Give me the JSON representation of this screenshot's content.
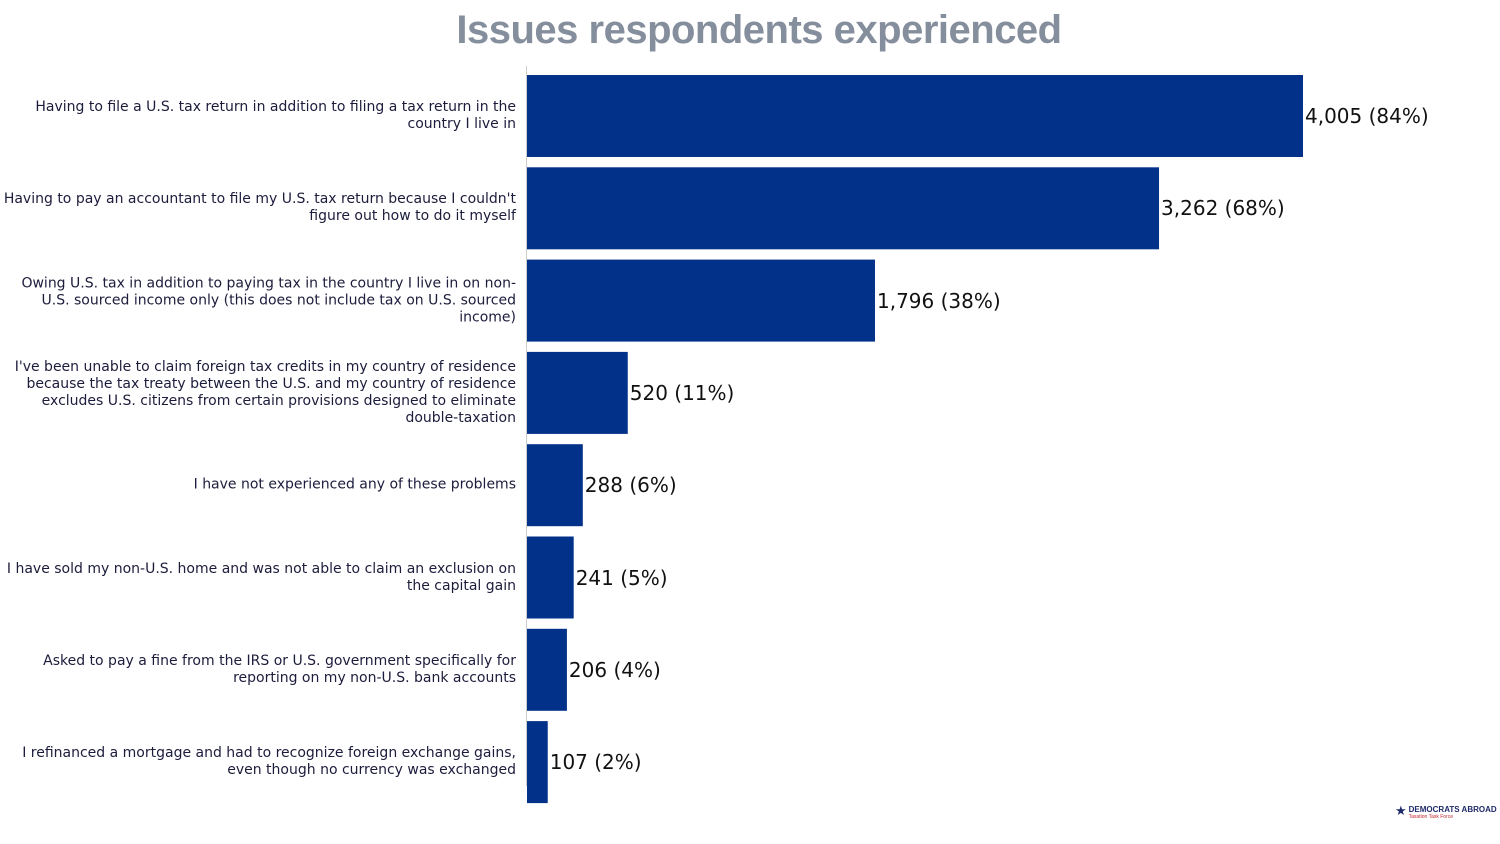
{
  "chart_data": {
    "type": "bar",
    "orientation": "horizontal",
    "title": "Issues respondents experienced",
    "categories": [
      "Having to file a U.S. tax return in addition to filing a tax return in the country I live in",
      "Having to pay an accountant to file my U.S. tax return because I couldn't figure out how to do it myself",
      "Owing U.S. tax in addition to paying tax in the country I live in on non-U.S. sourced income only (this does not include tax on U.S. sourced income)",
      "I've been unable to claim foreign tax credits in my country of residence because the tax treaty between the U.S. and my country of residence excludes U.S. citizens from certain provisions designed to eliminate double-taxation",
      "I have not experienced any of these problems",
      "I have sold my non-U.S. home and was not able to claim an exclusion on the capital gain",
      "Asked to pay a fine from the IRS or U.S. government specifically for reporting on my non-U.S. bank accounts",
      "I refinanced a mortgage and had to recognize foreign exchange gains, even though no currency was exchanged"
    ],
    "values": [
      4005,
      3262,
      1796,
      520,
      288,
      241,
      206,
      107
    ],
    "data_labels": [
      "4,005 (84%)",
      "3,262 (68%)",
      "1,796 (38%)",
      "520 (11%)",
      "288 (6%)",
      "241 (5%)",
      "206 (4%)",
      "107 (2%)"
    ],
    "xlim": [
      0,
      4005
    ],
    "grid": false,
    "legend": "none",
    "bar_color": "#023189",
    "axis_color": "#cccccc"
  },
  "logo": {
    "name": "DEMOCRATS ABROAD",
    "tagline": "Taxation Task Force",
    "icon": "star-icon"
  }
}
